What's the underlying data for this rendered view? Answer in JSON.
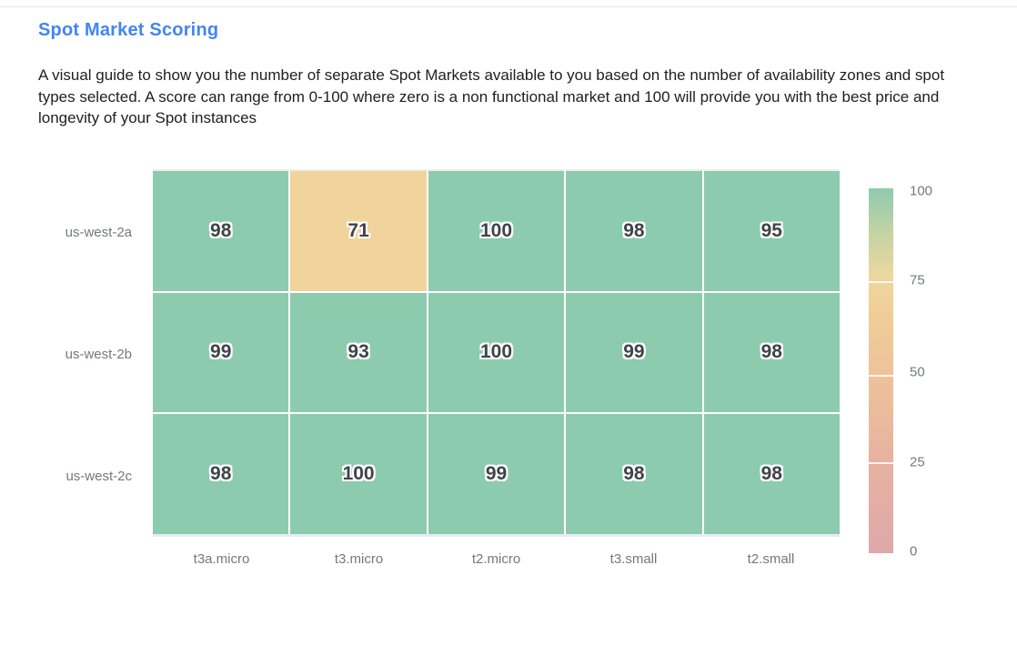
{
  "page": {
    "title": "Spot Market Scoring",
    "description": "A visual guide to show you the number of separate Spot Markets available to you based on the number of availability zones and spot types selected. A score can range from 0-100 where zero is a non functional market and 100 will provide you with the best price and longevity of your Spot instances"
  },
  "colors": {
    "title_blue": "#4285f4",
    "body_text": "#212121",
    "axis_label_gray": "#75787d",
    "cell_value_text": "#3f434a",
    "cell_green": "#8dcbae",
    "cell_tan": "#f0d49b"
  },
  "chart_data": {
    "type": "heatmap",
    "title": "Spot Market Scoring",
    "rows": [
      "us-west-2a",
      "us-west-2b",
      "us-west-2c"
    ],
    "columns": [
      "t3a.micro",
      "t3.micro",
      "t2.micro",
      "t3.small",
      "t2.small"
    ],
    "values": [
      [
        98,
        71,
        100,
        98,
        95
      ],
      [
        99,
        93,
        100,
        99,
        98
      ],
      [
        98,
        100,
        99,
        98,
        98
      ]
    ],
    "cell_colors": [
      [
        "#8dcbae",
        "#f0d49b",
        "#8dcbae",
        "#8dcbae",
        "#8dcbae"
      ],
      [
        "#8dcbae",
        "#8dcbae",
        "#8dcbae",
        "#8dcbae",
        "#8dcbae"
      ],
      [
        "#8dcbae",
        "#8dcbae",
        "#8dcbae",
        "#8dcbae",
        "#8dcbae"
      ]
    ],
    "value_range": [
      0,
      100
    ],
    "colorbar": {
      "ticks": [
        "100",
        "75",
        "50",
        "25",
        "0"
      ],
      "gradient_bottom_to_top": [
        "#dfa8aa 0%",
        "#e7b2a0 25%",
        "#eec39a 50%",
        "#f0cd97 65%",
        "#ecd89e 76%",
        "#c3d3a5 88%",
        "#8dcbae 100%"
      ]
    },
    "grid": "off",
    "legend_position": "right"
  }
}
